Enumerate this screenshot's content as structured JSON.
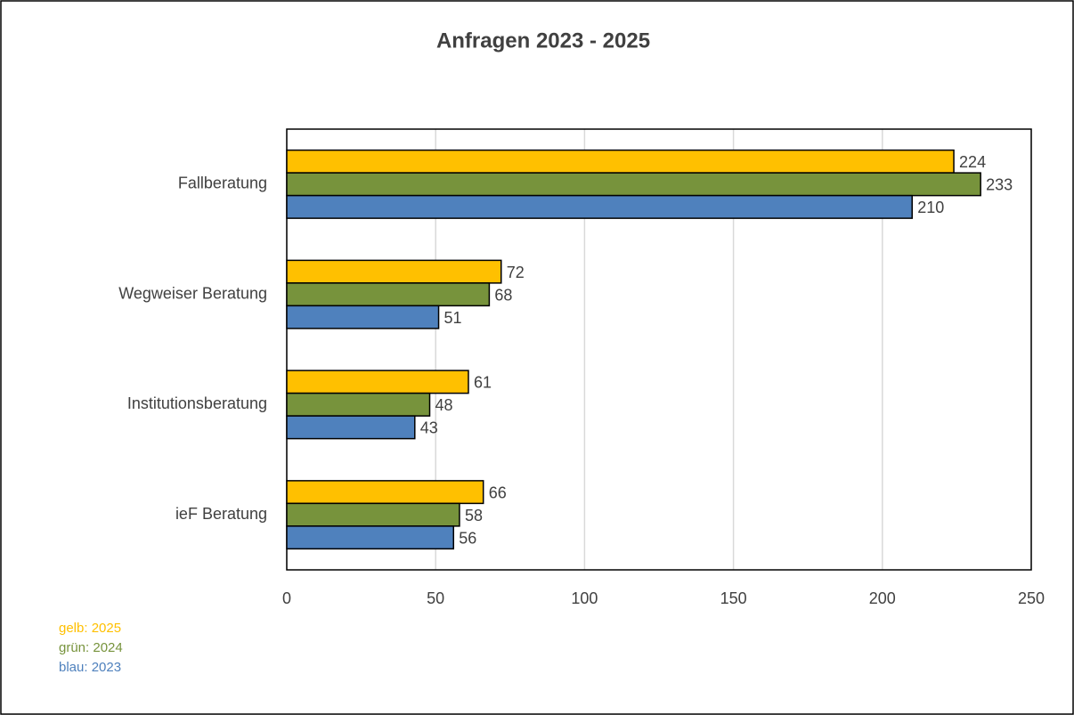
{
  "chart_data": {
    "type": "hbar",
    "title": "Anfragen 2023 - 2025",
    "categories": [
      "Fallberatung",
      "Wegweiser Beratung",
      "Institutionsberatung",
      "ieF Beratung"
    ],
    "series": [
      {
        "name": "gelb: 2025",
        "color": "#ffc000",
        "values": [
          224,
          72,
          61,
          66
        ]
      },
      {
        "name": "grün: 2024",
        "color": "#77933c",
        "values": [
          233,
          68,
          48,
          58
        ]
      },
      {
        "name": "blau: 2023",
        "color": "#4f81bd",
        "values": [
          210,
          51,
          43,
          56
        ]
      }
    ],
    "xlim": [
      0,
      250
    ],
    "xticks": [
      0,
      50,
      100,
      150,
      200,
      250
    ],
    "grid": true,
    "legend": "bottom-left"
  }
}
